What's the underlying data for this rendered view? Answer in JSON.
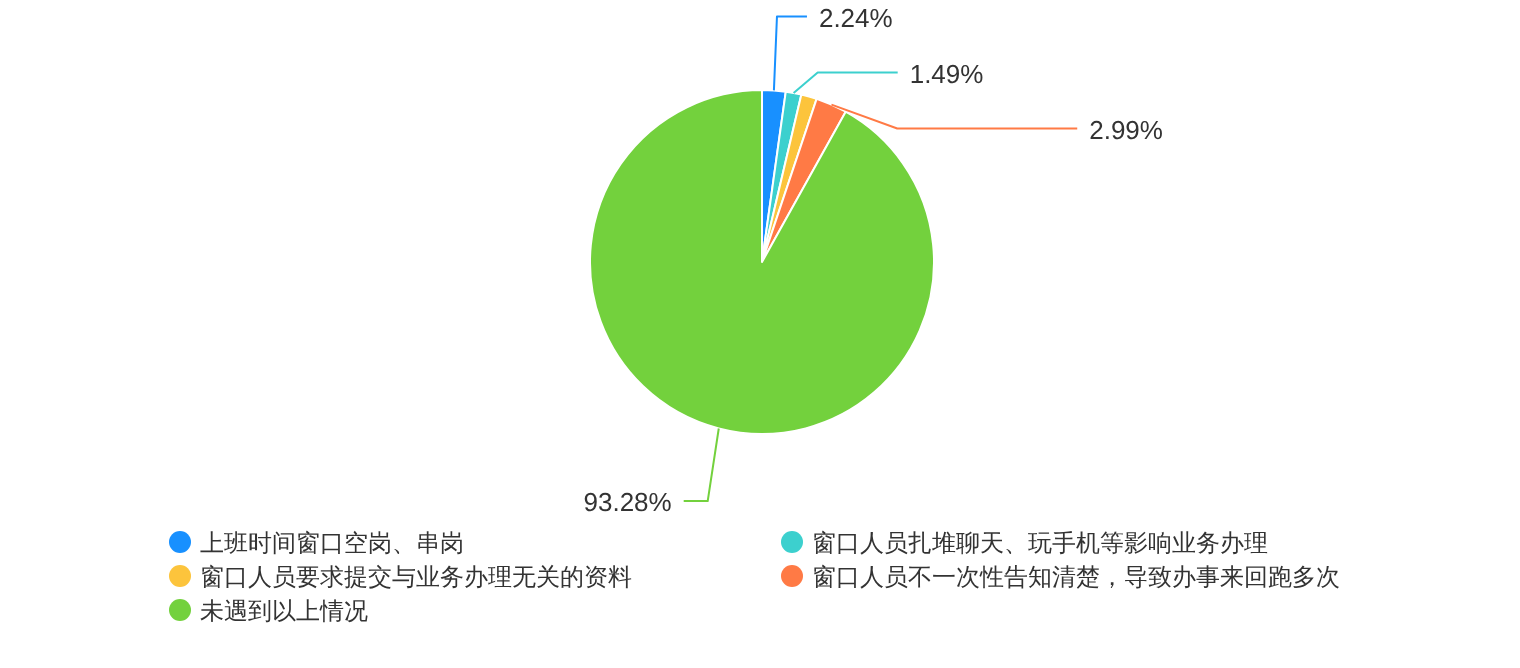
{
  "chart_data": {
    "type": "pie",
    "categories": [
      "上班时间窗口空岗、串岗",
      "窗口人员扎堆聊天、玩手机等影响业务办理",
      "窗口人员要求提交与业务办理无关的资料",
      "窗口人员不一次性告知清楚，导致办事来回跑多次",
      "未遇到以上情况"
    ],
    "values": [
      2.24,
      1.49,
      1.49,
      2.99,
      93.28
    ],
    "value_labels": [
      "2.24%",
      "1.49%",
      null,
      "2.99%",
      "93.28%"
    ],
    "colors": [
      "#1890ff",
      "#3cd0ce",
      "#fcc43c",
      "#ff7a45",
      "#73d13d"
    ],
    "legend": "bottom"
  }
}
